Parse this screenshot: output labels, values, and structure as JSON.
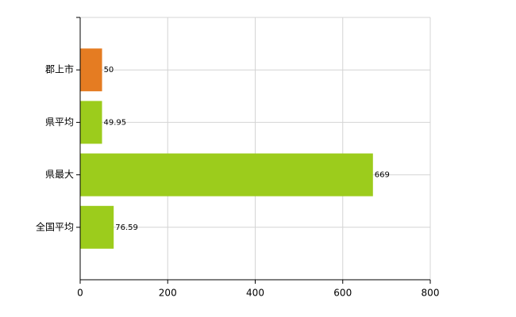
{
  "chart_data": {
    "type": "bar",
    "orientation": "horizontal",
    "categories": [
      "郡上市",
      "県平均",
      "県最大",
      "全国平均"
    ],
    "values": [
      50,
      49.95,
      669,
      76.59
    ],
    "colors": [
      "#e57c22",
      "#9ccc1c",
      "#9ccc1c",
      "#9ccc1c"
    ],
    "xlim": [
      0,
      800
    ],
    "xticks": [
      0,
      200,
      400,
      600,
      800
    ],
    "grid": true
  }
}
